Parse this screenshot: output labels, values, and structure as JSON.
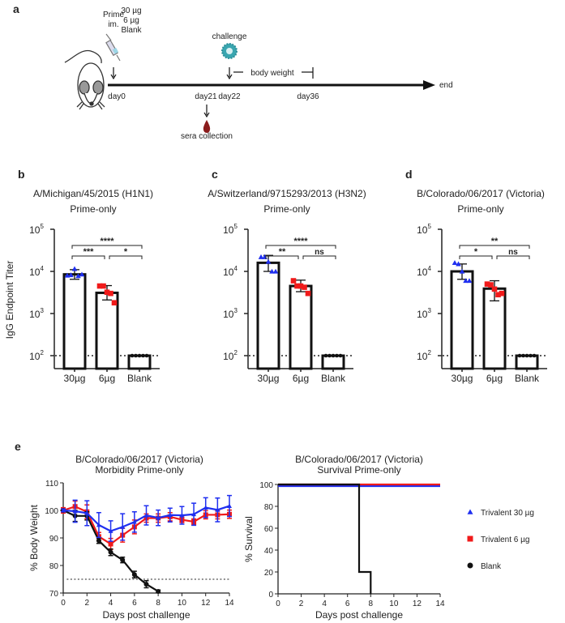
{
  "panel_a": {
    "label": "a",
    "prime_label": [
      "Prime",
      "im."
    ],
    "doses": [
      "30 µg",
      "6 µg",
      "Blank"
    ],
    "challenge": "challenge",
    "body_weight": "body weight",
    "end": "end",
    "days": [
      "day0",
      "day21",
      "day22",
      "day36"
    ],
    "sera": "sera collection",
    "icons": [
      "mouse-icon",
      "syringe-icon",
      "virus-icon",
      "blood-drop-icon"
    ]
  },
  "colors": {
    "blue": "#1f2ff0",
    "red": "#f01a1a",
    "black": "#111111",
    "virus": "#3aa6b0",
    "blood": "#8b1c1c"
  },
  "chart_data": [
    {
      "type": "bar",
      "label": "b",
      "title": "A/Michigan/45/2015 (H1N1)",
      "subtitle": "Prime-only",
      "ylabel": "IgG Endpoint Titer",
      "yscale": "log",
      "ylim": [
        100,
        100000
      ],
      "y_tick_exponents": [
        2,
        3,
        4,
        5
      ],
      "y_tick_base": "10",
      "categories": [
        "30µg",
        "6µg",
        "Blank"
      ],
      "values": [
        8500,
        3100,
        100
      ],
      "error": [
        [
          6500,
          11000
        ],
        [
          2100,
          4600
        ],
        [
          100,
          100
        ]
      ],
      "points": [
        [
          8000,
          8200,
          11500,
          7800,
          8500
        ],
        [
          4500,
          4500,
          3200,
          3000,
          1800
        ],
        [
          100,
          100,
          100,
          100,
          100
        ]
      ],
      "threshold": 100,
      "significance": [
        {
          "pair": [
            0,
            2
          ],
          "text": "****"
        },
        {
          "pair": [
            0,
            1
          ],
          "text": "***"
        },
        {
          "pair": [
            1,
            2
          ],
          "text": "*"
        }
      ]
    },
    {
      "type": "bar",
      "label": "c",
      "title": "A/Switzerland/9715293/2013 (H3N2)",
      "subtitle": "Prime-only",
      "yscale": "log",
      "ylim": [
        100,
        100000
      ],
      "y_tick_exponents": [
        2,
        3,
        4,
        5
      ],
      "y_tick_base": "10",
      "categories": [
        "30µg",
        "6µg",
        "Blank"
      ],
      "values": [
        16000,
        4500,
        100
      ],
      "error": [
        [
          10000,
          24000
        ],
        [
          3300,
          6200
        ],
        [
          100,
          100
        ]
      ],
      "points": [
        [
          22000,
          22000,
          17000,
          10000,
          10000
        ],
        [
          6000,
          4500,
          4500,
          4200,
          3000
        ],
        [
          100,
          100,
          100,
          100,
          100
        ]
      ],
      "threshold": 100,
      "significance": [
        {
          "pair": [
            0,
            2
          ],
          "text": "****"
        },
        {
          "pair": [
            0,
            1
          ],
          "text": "**"
        },
        {
          "pair": [
            1,
            2
          ],
          "text": "ns"
        }
      ]
    },
    {
      "type": "bar",
      "label": "d",
      "title": "B/Colorado/06/2017 (Victoria)",
      "subtitle": "Prime-only",
      "yscale": "log",
      "ylim": [
        100,
        100000
      ],
      "y_tick_exponents": [
        2,
        3,
        4,
        5
      ],
      "y_tick_base": "10",
      "categories": [
        "30µg",
        "6µg",
        "Blank"
      ],
      "values": [
        10000,
        3900,
        100
      ],
      "error": [
        [
          6500,
          15000
        ],
        [
          2000,
          6000
        ],
        [
          100,
          100
        ]
      ],
      "points": [
        [
          16000,
          15000,
          10000,
          6000,
          6000
        ],
        [
          5000,
          4800,
          3800,
          2800,
          3000
        ],
        [
          100,
          100,
          100,
          100,
          100
        ]
      ],
      "threshold": 100,
      "significance": [
        {
          "pair": [
            0,
            2
          ],
          "text": "**"
        },
        {
          "pair": [
            0,
            1
          ],
          "text": "*"
        },
        {
          "pair": [
            1,
            2
          ],
          "text": "ns"
        }
      ]
    },
    {
      "type": "line",
      "label": "e",
      "title": [
        "B/Colorado/06/2017 (Victoria)",
        "Morbidity Prime-only"
      ],
      "xlabel": "Days post challenge",
      "ylabel": "% Body Weight",
      "xlim": [
        0,
        14
      ],
      "ylim": [
        70,
        110
      ],
      "x_ticks": [
        0,
        2,
        4,
        6,
        8,
        10,
        12,
        14
      ],
      "y_ticks": [
        70,
        80,
        90,
        100,
        110
      ],
      "threshold": 75,
      "series": [
        {
          "name": "Trivalent 6 µg",
          "color": "red",
          "marker": "square",
          "x": [
            0,
            1,
            2,
            3,
            4,
            5,
            6,
            7,
            8,
            9,
            10,
            11,
            12,
            13,
            14
          ],
          "y": [
            100,
            101.4,
            99.5,
            90.5,
            87.8,
            91,
            94,
            97.2,
            97.2,
            97.7,
            96.6,
            95.9,
            98.4,
            98.4,
            98.6
          ],
          "err": [
            1,
            2,
            2.5,
            1.5,
            2,
            2.5,
            2.5,
            1.5,
            1.5,
            1.5,
            1,
            1,
            1.5,
            1.5,
            1.5
          ]
        },
        {
          "name": "Blank",
          "color": "black",
          "marker": "circle",
          "x": [
            0,
            1,
            2,
            3,
            4,
            5,
            6,
            7,
            8
          ],
          "y": [
            100,
            98,
            98,
            89,
            84.8,
            82,
            76.7,
            73.2,
            70.6
          ],
          "err": [
            0.5,
            2,
            1.5,
            1,
            1.2,
            1,
            1.2,
            1.3,
            0.5
          ]
        },
        {
          "name": "Trivalent 30 µg",
          "color": "blue",
          "marker": "triangle",
          "x": [
            0,
            1,
            2,
            3,
            4,
            5,
            6,
            7,
            8,
            9,
            10,
            11,
            12,
            13,
            14
          ],
          "y": [
            100,
            99.7,
            99,
            94.7,
            92.5,
            94,
            95.8,
            98.2,
            97.3,
            98.3,
            98.2,
            98.6,
            101,
            100.2,
            101.6
          ],
          "err": [
            0.5,
            4,
            4.5,
            4.5,
            3.7,
            4.8,
            3.7,
            3.5,
            2.8,
            2.5,
            3.2,
            4,
            3.6,
            4.3,
            3.8
          ]
        }
      ]
    },
    {
      "type": "line",
      "subtype": "survival",
      "title": [
        "B/Colorado/06/2017 (Victoria)",
        "Survival Prime-only"
      ],
      "xlabel": "Days post challenge",
      "ylabel": "% Survival",
      "xlim": [
        0,
        14
      ],
      "ylim": [
        0,
        100
      ],
      "x_ticks": [
        0,
        2,
        4,
        6,
        8,
        10,
        12,
        14
      ],
      "y_ticks": [
        0,
        20,
        40,
        60,
        80,
        100
      ],
      "series": [
        {
          "name": "Trivalent 30 µg",
          "color": "blue",
          "marker": "triangle",
          "x": [
            0,
            14
          ],
          "y": [
            98.5,
            98.5
          ]
        },
        {
          "name": "Trivalent 6 µg",
          "color": "red",
          "marker": "square",
          "x": [
            0,
            14
          ],
          "y": [
            100,
            100
          ]
        },
        {
          "name": "Blank",
          "color": "black",
          "marker": "circle",
          "x": [
            0,
            7,
            7,
            8,
            8
          ],
          "y": [
            100,
            100,
            20,
            20,
            0
          ]
        }
      ],
      "legend": {
        "placement": "right",
        "entries": [
          "Trivalent 30 µg",
          "Trivalent 6 µg",
          "Blank"
        ]
      }
    }
  ]
}
